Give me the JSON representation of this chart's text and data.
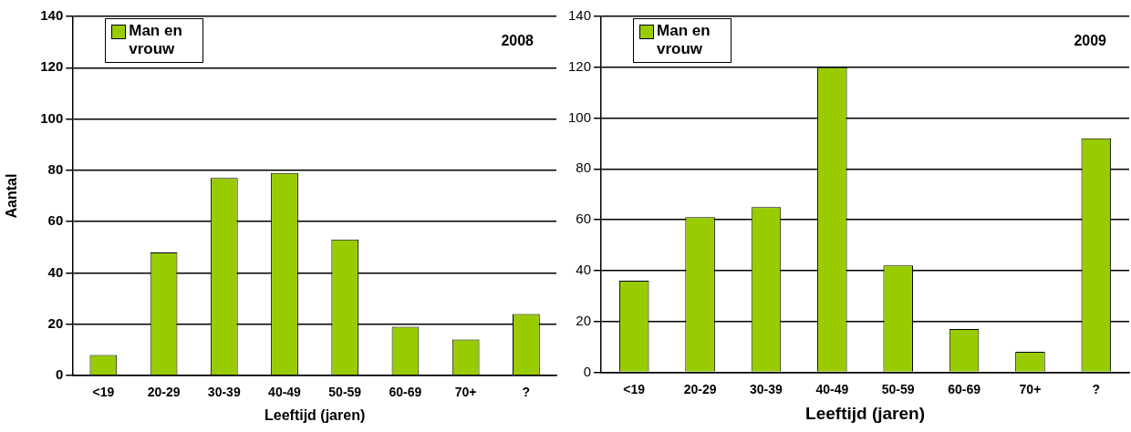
{
  "chart_data": [
    {
      "type": "bar",
      "title": "2008",
      "xlabel": "Leeftijd (jaren)",
      "ylabel": "Aantal",
      "categories": [
        "<19",
        "20-29",
        "30-39",
        "40-49",
        "50-59",
        "60-69",
        "70+",
        "?"
      ],
      "series": [
        {
          "name": "Man en vrouw",
          "color": "#99cc00",
          "values": [
            8,
            48,
            77,
            79,
            53,
            19,
            14,
            24
          ]
        }
      ],
      "ylim": [
        0,
        140
      ],
      "yticks": [
        0,
        20,
        40,
        60,
        80,
        100,
        120,
        140
      ],
      "grid": "y",
      "legend": "top left"
    },
    {
      "type": "bar",
      "title": "2009",
      "xlabel": "Leeftijd (jaren)",
      "categories": [
        "<19",
        "20-29",
        "30-39",
        "40-49",
        "50-59",
        "60-69",
        "70+",
        "?"
      ],
      "series": [
        {
          "name": "Man en vrouw",
          "color": "#99cc00",
          "values": [
            36,
            61,
            65,
            120,
            42,
            17,
            8,
            92
          ]
        }
      ],
      "ylim": [
        0,
        140
      ],
      "yticks": [
        0,
        20,
        40,
        60,
        80,
        100,
        120,
        140
      ],
      "grid": "y",
      "legend": "top left"
    }
  ]
}
